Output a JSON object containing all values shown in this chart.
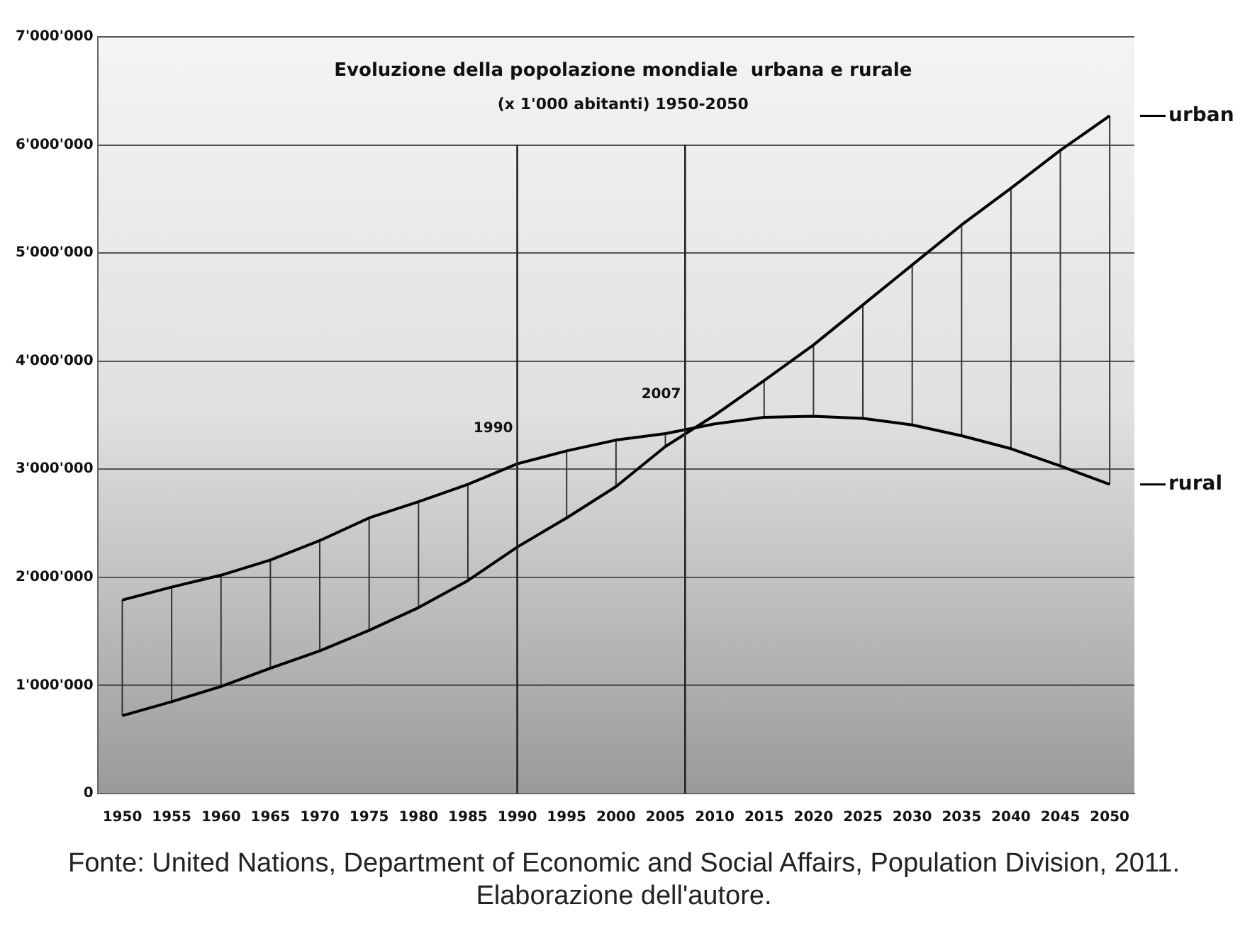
{
  "chart_data": {
    "type": "line",
    "title": "Evoluzione della popolazione mondiale  urbana e rurale",
    "subtitle": "(x 1'000 abitanti) 1950-2050",
    "x": [
      1950,
      1955,
      1960,
      1965,
      1970,
      1975,
      1980,
      1985,
      1990,
      1995,
      2000,
      2005,
      2010,
      2015,
      2020,
      2025,
      2030,
      2035,
      2040,
      2045,
      2050
    ],
    "series": [
      {
        "name": "urban",
        "color": "#000000",
        "values": [
          720000,
          850000,
          990000,
          1160000,
          1320000,
          1510000,
          1720000,
          1970000,
          2280000,
          2550000,
          2840000,
          3210000,
          3500000,
          3820000,
          4150000,
          4520000,
          4890000,
          5260000,
          5600000,
          5950000,
          6270000
        ]
      },
      {
        "name": "rural",
        "color": "#000000",
        "values": [
          1790000,
          1910000,
          2020000,
          2160000,
          2340000,
          2550000,
          2700000,
          2860000,
          3050000,
          3170000,
          3270000,
          3330000,
          3420000,
          3480000,
          3490000,
          3470000,
          3410000,
          3310000,
          3190000,
          3030000,
          2860000
        ],
        "errors": [
          [
            720000,
            1790000
          ],
          [
            850000,
            1910000
          ],
          [
            990000,
            2020000
          ],
          [
            1160000,
            2160000
          ],
          [
            1320000,
            2340000
          ],
          [
            1510000,
            2550000
          ],
          [
            1720000,
            2700000
          ],
          [
            1970000,
            2860000
          ],
          [
            2280000,
            3050000
          ],
          [
            2550000,
            3170000
          ],
          [
            2840000,
            3270000
          ],
          [
            3210000,
            3330000
          ],
          null,
          [
            3480000,
            3820000
          ],
          [
            3490000,
            4150000
          ],
          [
            3470000,
            4520000
          ],
          [
            3410000,
            4890000
          ],
          [
            3310000,
            5260000
          ],
          [
            3190000,
            5600000
          ],
          [
            3030000,
            5950000
          ],
          [
            2860000,
            6270000
          ]
        ]
      }
    ],
    "xlim": [
      1947.5,
      2052.5
    ],
    "xticks": [
      1950,
      1955,
      1960,
      1965,
      1970,
      1975,
      1980,
      1985,
      1990,
      1995,
      2000,
      2005,
      2010,
      2015,
      2020,
      2025,
      2030,
      2035,
      2040,
      2045,
      2050
    ],
    "ylim": [
      0,
      7000000
    ],
    "yticks": [
      0,
      {
        "value": 1000000,
        "label": "1'000'000"
      },
      {
        "value": 2000000,
        "label": "2'000'000"
      },
      {
        "value": 3000000,
        "label": "3'000'000"
      },
      {
        "value": 4000000,
        "label": "4'000'000"
      },
      {
        "value": 5000000,
        "label": "5'000'000"
      },
      {
        "value": 6000000,
        "label": "6'000'000"
      },
      {
        "value": 7000000,
        "label": "7'000'000"
      }
    ],
    "grid": "y",
    "legend": "right",
    "marker": "none",
    "line_style": "solid",
    "ref_lines": [
      {
        "axis": "x",
        "value": 1990,
        "label": "1990"
      },
      {
        "axis": "x",
        "value": 2007,
        "label": "2007"
      }
    ],
    "annotations": [
      "Fonte: United Nations, Department of Economic and Social Affairs, Population Division, 2011. Elaborazione dell'autore."
    ]
  }
}
